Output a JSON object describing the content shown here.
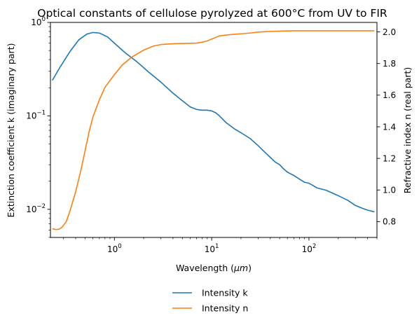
{
  "chart_data": {
    "type": "line",
    "title": "Optical constants of cellulose pyrolyzed at 600°C from UV to FIR",
    "xlabel": "Wavelength ($\\mu m$)",
    "ylabel_left": "Extinction coefficient k (imaginary part)",
    "ylabel_right": "Refractive index n (real part)",
    "x_scale": "log",
    "x_range": [
      0.22,
      500
    ],
    "x_ticks": [
      {
        "value": 1,
        "base": "10",
        "exp": "0"
      },
      {
        "value": 10,
        "base": "10",
        "exp": "1"
      },
      {
        "value": 100,
        "base": "10",
        "exp": "2"
      }
    ],
    "y_left_scale": "log",
    "y_left_range": [
      0.005,
      1.0
    ],
    "y_left_ticks": [
      {
        "value": 0.01,
        "base": "10",
        "exp": "−2"
      },
      {
        "value": 0.1,
        "base": "10",
        "exp": "−1"
      },
      {
        "value": 1.0,
        "base": "10",
        "exp": "0"
      }
    ],
    "y_right_scale": "linear",
    "y_right_range": [
      0.7,
      2.06
    ],
    "y_right_ticks": [
      "0.8",
      "1.0",
      "1.2",
      "1.4",
      "1.6",
      "1.8",
      "2.0"
    ],
    "legend_position": "below",
    "grid": false,
    "series": [
      {
        "name": "Intensity k",
        "axis": "left",
        "color": "#1f77b4",
        "points": [
          [
            0.23,
            0.24
          ],
          [
            0.28,
            0.34
          ],
          [
            0.35,
            0.49
          ],
          [
            0.43,
            0.65
          ],
          [
            0.52,
            0.75
          ],
          [
            0.6,
            0.78
          ],
          [
            0.7,
            0.77
          ],
          [
            0.85,
            0.7
          ],
          [
            1.0,
            0.6
          ],
          [
            1.3,
            0.47
          ],
          [
            1.7,
            0.38
          ],
          [
            2.2,
            0.3
          ],
          [
            3.0,
            0.23
          ],
          [
            4.0,
            0.175
          ],
          [
            5.0,
            0.145
          ],
          [
            6.0,
            0.125
          ],
          [
            7.0,
            0.117
          ],
          [
            8.0,
            0.115
          ],
          [
            9.0,
            0.115
          ],
          [
            10.0,
            0.113
          ],
          [
            11.0,
            0.108
          ],
          [
            12.0,
            0.1
          ],
          [
            14.0,
            0.085
          ],
          [
            17.0,
            0.073
          ],
          [
            20.0,
            0.066
          ],
          [
            25.0,
            0.057
          ],
          [
            30.0,
            0.048
          ],
          [
            35.0,
            0.041
          ],
          [
            40.0,
            0.036
          ],
          [
            45.0,
            0.032
          ],
          [
            50.0,
            0.03
          ],
          [
            55.0,
            0.027
          ],
          [
            60.0,
            0.025
          ],
          [
            70.0,
            0.023
          ],
          [
            80.0,
            0.021
          ],
          [
            90.0,
            0.0195
          ],
          [
            100.0,
            0.019
          ],
          [
            110.0,
            0.018
          ],
          [
            120.0,
            0.017
          ],
          [
            150.0,
            0.016
          ],
          [
            200.0,
            0.014
          ],
          [
            250.0,
            0.0125
          ],
          [
            300.0,
            0.011
          ],
          [
            350.0,
            0.0103
          ],
          [
            400.0,
            0.0098
          ],
          [
            470.0,
            0.0094
          ]
        ]
      },
      {
        "name": "Intensity n",
        "axis": "right",
        "color": "#ff7f0e",
        "points": [
          [
            0.23,
            0.755
          ],
          [
            0.25,
            0.75
          ],
          [
            0.27,
            0.752
          ],
          [
            0.29,
            0.765
          ],
          [
            0.32,
            0.8
          ],
          [
            0.35,
            0.87
          ],
          [
            0.4,
            0.99
          ],
          [
            0.45,
            1.12
          ],
          [
            0.5,
            1.25
          ],
          [
            0.55,
            1.37
          ],
          [
            0.6,
            1.46
          ],
          [
            0.7,
            1.57
          ],
          [
            0.8,
            1.65
          ],
          [
            1.0,
            1.73
          ],
          [
            1.2,
            1.79
          ],
          [
            1.5,
            1.84
          ],
          [
            2.0,
            1.885
          ],
          [
            2.5,
            1.91
          ],
          [
            3.0,
            1.92
          ],
          [
            4.0,
            1.925
          ],
          [
            5.0,
            1.927
          ],
          [
            6.0,
            1.928
          ],
          [
            7.0,
            1.929
          ],
          [
            8.0,
            1.935
          ],
          [
            9.0,
            1.943
          ],
          [
            10.0,
            1.955
          ],
          [
            11.0,
            1.965
          ],
          [
            12.0,
            1.975
          ],
          [
            14.0,
            1.98
          ],
          [
            17.0,
            1.985
          ],
          [
            20.0,
            1.988
          ],
          [
            25.0,
            1.993
          ],
          [
            30.0,
            1.999
          ],
          [
            40.0,
            2.003
          ],
          [
            50.0,
            2.005
          ],
          [
            70.0,
            2.007
          ],
          [
            100.0,
            2.007
          ],
          [
            200.0,
            2.007
          ],
          [
            300.0,
            2.007
          ],
          [
            470.0,
            2.007
          ]
        ]
      }
    ]
  }
}
